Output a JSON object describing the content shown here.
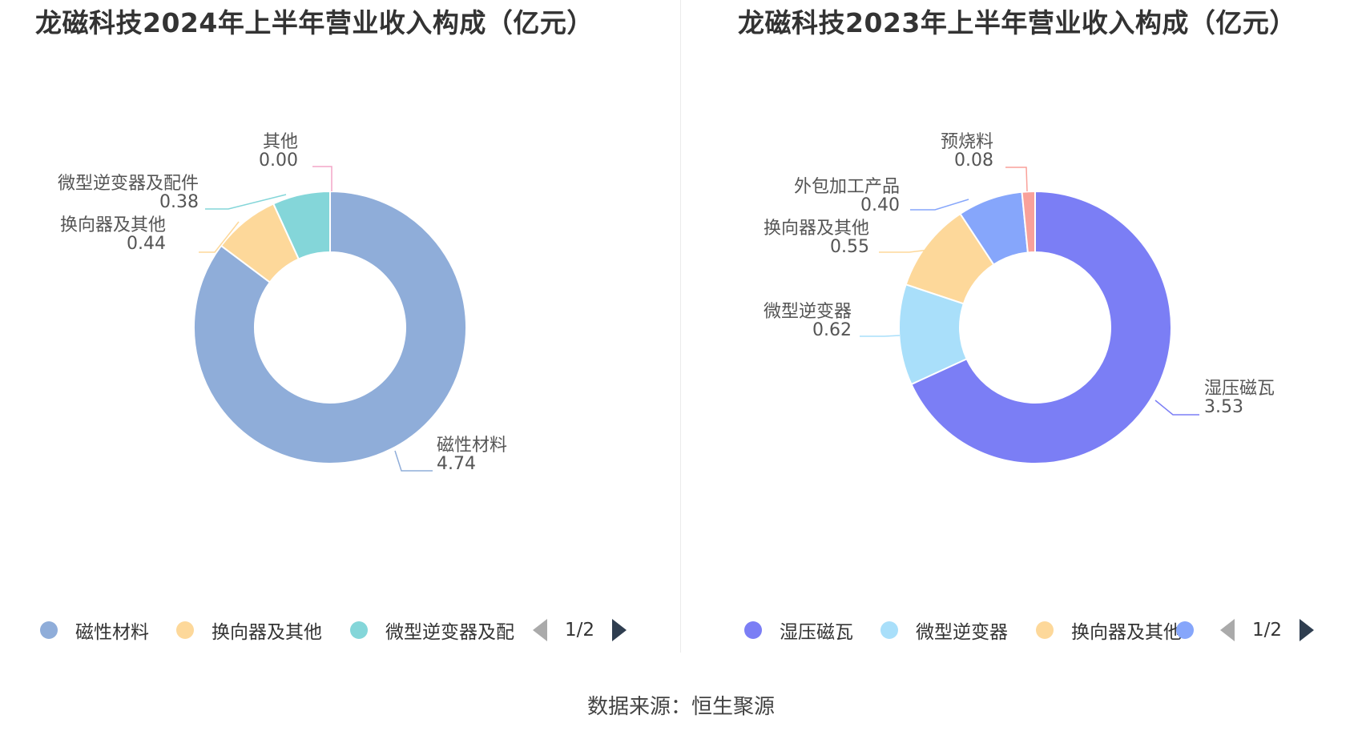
{
  "source_label": "数据来源：恒生聚源",
  "chart_data": [
    {
      "type": "pie",
      "donut": true,
      "title": "龙磁科技2024年上半年营业收入构成（亿元）",
      "categories": [
        "磁性材料",
        "换向器及其他",
        "微型逆变器及配件",
        "其他"
      ],
      "values": [
        4.74,
        0.44,
        0.38,
        0.0
      ],
      "value_labels": [
        "4.74",
        "0.44",
        "0.38",
        "0.00"
      ],
      "colors": [
        "#8fadd9",
        "#fdd89a",
        "#84d6d9",
        "#f4a5c7"
      ],
      "legend": {
        "position": "bottom",
        "visible_items": [
          "磁性材料",
          "换向器及其他",
          "微型逆变器及配"
        ],
        "page": "1/2"
      }
    },
    {
      "type": "pie",
      "donut": true,
      "title": "龙磁科技2023年上半年营业收入构成（亿元）",
      "categories": [
        "湿压磁瓦",
        "微型逆变器",
        "换向器及其他",
        "外包加工产品",
        "预烧料"
      ],
      "values": [
        3.53,
        0.62,
        0.55,
        0.4,
        0.08
      ],
      "value_labels": [
        "3.53",
        "0.62",
        "0.55",
        "0.40",
        "0.08"
      ],
      "colors": [
        "#7b7ef5",
        "#a9dffa",
        "#fdd89a",
        "#86a6fb",
        "#f9a19a"
      ],
      "legend": {
        "position": "bottom",
        "visible_items": [
          "湿压磁瓦",
          "微型逆变器",
          "换向器及其他",
          ""
        ],
        "page": "1/2"
      }
    }
  ]
}
